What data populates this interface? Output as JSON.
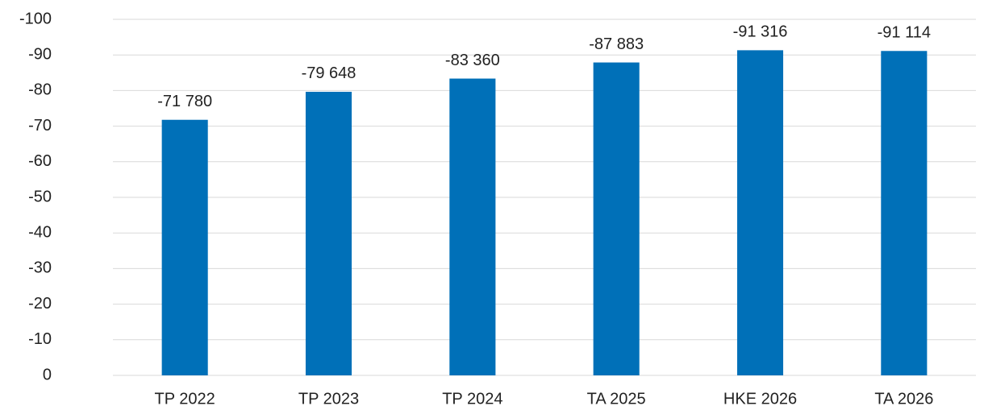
{
  "chart_data": {
    "type": "bar",
    "categories": [
      "TP 2022",
      "TP 2023",
      "TP 2024",
      "TA 2025",
      "HKE 2026",
      "TA 2026"
    ],
    "values": [
      -71.78,
      -79.648,
      -83.36,
      -87.883,
      -91.316,
      -91.114
    ],
    "value_labels": [
      "-71 780",
      "-79 648",
      "-83 360",
      "-87 883",
      "-91 316",
      "-91 114"
    ],
    "color": "#0070b8",
    "ylim": [
      0,
      -100
    ],
    "yticks": [
      0,
      -10,
      -20,
      -30,
      -40,
      -50,
      -60,
      -70,
      -80,
      -90,
      -100
    ],
    "grid": true
  }
}
